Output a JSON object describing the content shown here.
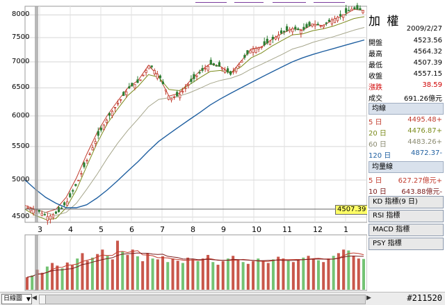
{
  "index_panel": {
    "title": "加 權",
    "date": "2009/2/27",
    "quote": [
      {
        "label": "開盤",
        "value": "4523.56",
        "color": "#000000"
      },
      {
        "label": "最高",
        "value": "4564.32",
        "color": "#000000"
      },
      {
        "label": "最低",
        "value": "4507.39",
        "color": "#000000"
      },
      {
        "label": "收盤",
        "value": "4557.15",
        "color": "#000000"
      },
      {
        "label": "漲跌",
        "value": "38.59",
        "color": "#d00000"
      },
      {
        "label": "成交",
        "value": "691.26億元",
        "color": "#000000"
      }
    ],
    "ma_section": {
      "title": "均線",
      "items": [
        {
          "label": "5 日",
          "value": "4495.48+",
          "color": "#c0392b"
        },
        {
          "label": "20 日",
          "value": "4476.87+",
          "color": "#7a8a1a"
        },
        {
          "label": "60 日",
          "value": "4483.26+",
          "color": "#8a8a70"
        },
        {
          "label": "120 日",
          "value": "4872.37-",
          "color": "#1f5fa0"
        }
      ]
    },
    "vol_ma_section": {
      "title": "均量線",
      "items": [
        {
          "label": "5 日",
          "value": "627.27億元+",
          "color": "#c0392b"
        },
        {
          "label": "10 日",
          "value": "643.88億元-",
          "color": "#7a1a1a"
        }
      ]
    },
    "indicator_buttons": [
      "KD 指標(9 日)",
      "RSI 指標",
      "MACD 指標",
      "PSY 指標"
    ]
  },
  "price_chart": {
    "y_ticks": [
      "8000",
      "7500",
      "7000",
      "6500",
      "6000",
      "5500",
      "5000",
      "4500"
    ],
    "x_ticks": [
      "3",
      "4",
      "5",
      "6",
      "7",
      "8",
      "9",
      "10",
      "11",
      "12",
      "1"
    ],
    "current_price_tag": "4507.39"
  },
  "chart_data": {
    "type": "line",
    "title": "",
    "ylim": [
      4450,
      8200
    ],
    "y_scale": "log",
    "grid": true,
    "x_ticks": [
      "3",
      "4",
      "5",
      "6",
      "7",
      "8",
      "9",
      "10",
      "11",
      "12",
      "1"
    ],
    "series": [
      {
        "values": [
          4620,
          4580,
          4500,
          4560,
          4720,
          5000,
          5350,
          5700,
          6000,
          6250,
          6500,
          6620,
          6950,
          6700,
          6300,
          6380,
          6600,
          6800,
          6950,
          6900,
          6750,
          7000,
          7250,
          7300,
          7450,
          7600,
          7700,
          7650,
          7800,
          7750,
          7900,
          8000,
          8150,
          8100
        ]
      },
      {
        "values": [
          4650,
          4600,
          4560,
          4600,
          4760,
          5030,
          5380,
          5720,
          6010,
          6260,
          6500,
          6640,
          6930,
          6720,
          6350,
          6400,
          6620,
          6820,
          6960,
          6910,
          6770,
          7010,
          7260,
          7300,
          7460,
          7590,
          7690,
          7660,
          7790,
          7760,
          7890,
          7990,
          8130,
          8100
        ]
      },
      {
        "values": [
          4600,
          4520,
          4470,
          4480,
          4620,
          4860,
          5200,
          5550,
          5870,
          6120,
          6360,
          6530,
          6750,
          6700,
          6470,
          6450,
          6560,
          6690,
          6810,
          6830,
          6790,
          6900,
          7080,
          7180,
          7320,
          7440,
          7560,
          7580,
          7650,
          7690,
          7750,
          7830,
          7920,
          7960
        ]
      },
      {
        "values": [
          4620,
          4600,
          4560,
          4520,
          4560,
          4680,
          4870,
          5080,
          5320,
          5550,
          5760,
          5950,
          6160,
          6290,
          6320,
          6350,
          6410,
          6490,
          6580,
          6640,
          6680,
          6750,
          6860,
          6950,
          7050,
          7150,
          7260,
          7320,
          7400,
          7460,
          7520,
          7590,
          7660,
          7720
        ]
      },
      {
        "values": [
          5000,
          4870,
          4760,
          4680,
          4620,
          4620,
          4660,
          4750,
          4860,
          4990,
          5130,
          5270,
          5430,
          5580,
          5700,
          5820,
          5940,
          6060,
          6190,
          6300,
          6400,
          6500,
          6600,
          6700,
          6800,
          6900,
          7000,
          7080,
          7150,
          7210,
          7270,
          7330,
          7390,
          7450
        ]
      }
    ],
    "volume": {
      "values": [
        280,
        320,
        450,
        380,
        520,
        600,
        540,
        480,
        610,
        550,
        700,
        820,
        650,
        720,
        800,
        900,
        760,
        680,
        1100,
        850,
        780,
        900,
        750,
        640,
        820,
        700,
        680,
        750,
        620,
        700,
        650,
        600,
        720,
        680,
        640,
        700,
        780,
        620,
        560,
        640,
        700,
        760,
        680,
        620,
        580,
        640,
        700,
        650,
        600,
        680,
        740,
        700,
        650,
        620,
        680,
        720,
        760,
        700,
        660,
        620,
        700,
        760,
        820,
        900,
        880,
        760,
        700,
        690
      ]
    }
  },
  "bottom_bar": {
    "period_select": "日線圖",
    "status_text": "#211520"
  }
}
